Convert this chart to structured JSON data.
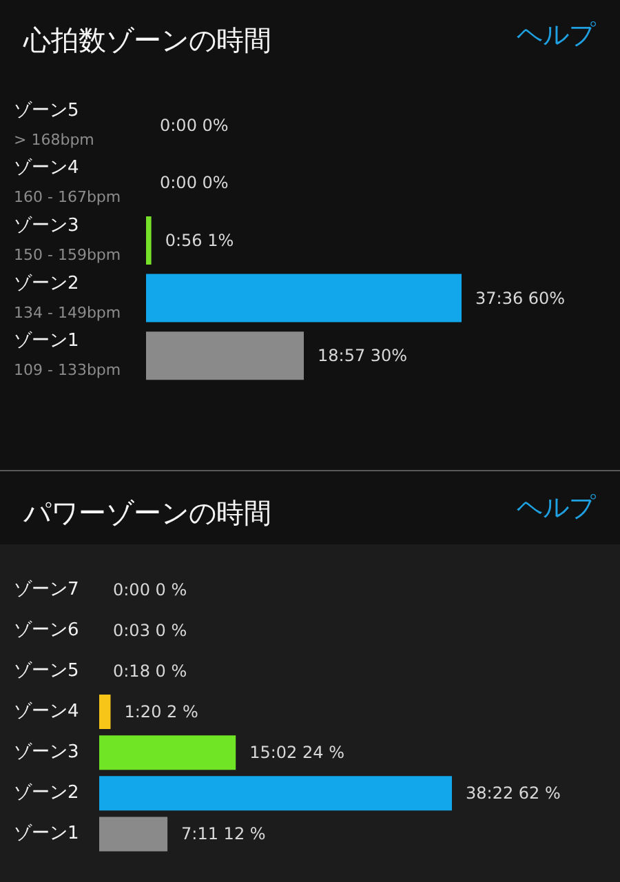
{
  "chart_data": [
    {
      "type": "bar",
      "orientation": "horizontal",
      "title": "心拍数ゾーンの時間",
      "annotations": [
        "ヘルプ"
      ],
      "tick_labels": "y",
      "categories": [
        "ゾーン5\n> 168bpm",
        "ゾーン4\n160 - 167bpm",
        "ゾーン3\n150 - 159bpm",
        "ゾーン2\n134 - 149bpm",
        "ゾーン1\n109 - 133bpm"
      ],
      "values": [
        0,
        0,
        1,
        60,
        30
      ],
      "colors": [
        null,
        null,
        "#76e02a",
        "#12a6ea",
        "#8a8a8a"
      ],
      "value_labels": [
        "0:00 0%",
        "0:00 0%",
        "0:56 1%",
        "37:36 60%",
        "18:57 30%"
      ]
    },
    {
      "type": "bar",
      "orientation": "horizontal",
      "title": "パワーゾーンの時間",
      "annotations": [
        "ヘルプ"
      ],
      "tick_labels": "y",
      "categories": [
        "ゾーン7",
        "ゾーン6",
        "ゾーン5",
        "ゾーン4",
        "ゾーン3",
        "ゾーン2",
        "ゾーン1"
      ],
      "values": [
        0,
        0,
        0,
        2,
        24,
        62,
        12
      ],
      "colors": [
        null,
        null,
        null,
        "#f7c518",
        "#6fe525",
        "#12a6ea",
        "#8a8a8a"
      ],
      "value_labels": [
        "0:00 0 %",
        "0:03 0 %",
        "0:18 0 %",
        "1:20 2 %",
        "15:02 24 %",
        "38:22 62 %",
        "7:11 12 %"
      ]
    }
  ]
}
